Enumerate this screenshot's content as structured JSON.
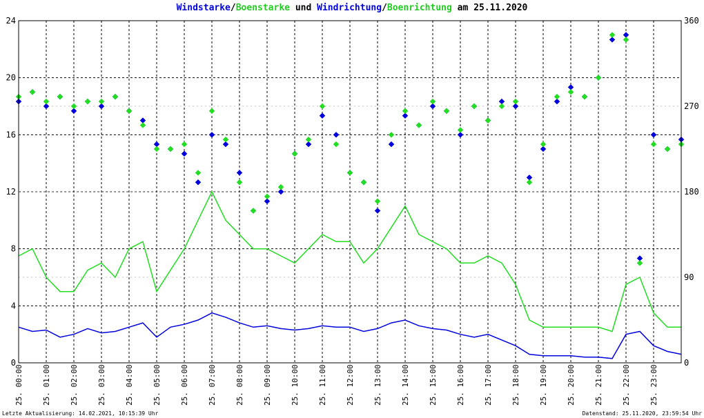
{
  "title": {
    "part1": "Windstarke",
    "sep1": "/",
    "part2": "Boenstarke",
    "part3": " und ",
    "part4": "Windrichtung",
    "sep2": "/",
    "part5": "Boenrichtung",
    "part6": " am 25.11.2020"
  },
  "footer": {
    "left": "Letzte Aktualisierung: 14.02.2021, 10:15:39 Uhr",
    "right": "Datenstand: 25.11.2020, 23:59:54 Uhr"
  },
  "colors": {
    "wind": "#0000dd",
    "gust": "#22dd22",
    "grid": "#000000",
    "axis": "#000000"
  },
  "chart_data": {
    "type": "line",
    "x_unit": "hour of day",
    "xlim": [
      0,
      24
    ],
    "ylim_left": [
      0,
      24
    ],
    "ylim_right": [
      0,
      360
    ],
    "left_ticks": [
      "0",
      "4",
      "8",
      "12",
      "16",
      "20",
      "24"
    ],
    "right_ticks": [
      "0",
      "90",
      "180",
      "270",
      "360"
    ],
    "x_tick_labels": [
      "25. 00:00",
      "25. 01:00",
      "25. 02:00",
      "25. 03:00",
      "25. 04:00",
      "25. 05:00",
      "25. 06:00",
      "25. 07:00",
      "25. 08:00",
      "25. 09:00",
      "25. 10:00",
      "25. 11:00",
      "25. 12:00",
      "25. 13:00",
      "25. 14:00",
      "25. 15:00",
      "25. 16:00",
      "25. 17:00",
      "25. 18:00",
      "25. 19:00",
      "25. 20:00",
      "25. 21:00",
      "25. 22:00",
      "25. 23:00"
    ],
    "grid": true,
    "series": [
      {
        "name": "Windstarke",
        "axis": "left",
        "style": "line",
        "x": [
          0,
          0.5,
          1,
          1.5,
          2,
          2.5,
          3,
          3.5,
          4,
          4.5,
          5,
          5.5,
          6,
          6.5,
          7,
          7.5,
          8,
          8.5,
          9,
          9.5,
          10,
          10.5,
          11,
          11.5,
          12,
          12.5,
          13,
          13.5,
          14,
          14.5,
          15,
          15.5,
          16,
          16.5,
          17,
          17.5,
          18,
          18.5,
          19,
          19.5,
          20,
          20.5,
          21,
          21.5,
          22,
          22.5,
          23,
          23.5,
          24
        ],
        "values": [
          2.5,
          2.2,
          2.3,
          1.8,
          2.0,
          2.4,
          2.1,
          2.2,
          2.5,
          2.8,
          1.8,
          2.5,
          2.7,
          3.0,
          3.5,
          3.2,
          2.8,
          2.5,
          2.6,
          2.4,
          2.3,
          2.4,
          2.6,
          2.5,
          2.5,
          2.2,
          2.4,
          2.8,
          3.0,
          2.6,
          2.4,
          2.3,
          2.0,
          1.8,
          2.0,
          1.6,
          1.2,
          0.6,
          0.5,
          0.5,
          0.5,
          0.4,
          0.4,
          0.3,
          2.0,
          2.2,
          1.2,
          0.8,
          0.6
        ]
      },
      {
        "name": "Boenstarke",
        "axis": "left",
        "style": "line",
        "x": [
          0,
          0.5,
          1,
          1.5,
          2,
          2.5,
          3,
          3.5,
          4,
          4.5,
          5,
          5.5,
          6,
          6.5,
          7,
          7.5,
          8,
          8.5,
          9,
          9.5,
          10,
          10.5,
          11,
          11.5,
          12,
          12.5,
          13,
          13.5,
          14,
          14.5,
          15,
          15.5,
          16,
          16.5,
          17,
          17.5,
          18,
          18.5,
          19,
          19.5,
          20,
          20.5,
          21,
          21.5,
          22,
          22.5,
          23,
          23.5,
          24
        ],
        "values": [
          7.5,
          8.0,
          6.0,
          5.0,
          5.0,
          6.5,
          7.0,
          6.0,
          8.0,
          8.5,
          5.0,
          6.5,
          8.0,
          10.0,
          12.0,
          10.0,
          9.0,
          8.0,
          8.0,
          7.5,
          7.0,
          8.0,
          9.0,
          8.5,
          8.5,
          7.0,
          8.0,
          9.5,
          11.0,
          9.0,
          8.5,
          8.0,
          7.0,
          7.0,
          7.5,
          7.0,
          5.5,
          3.0,
          2.5,
          2.5,
          2.5,
          2.5,
          2.5,
          2.2,
          5.5,
          6.0,
          3.5,
          2.5,
          2.5
        ]
      },
      {
        "name": "Windrichtung",
        "axis": "right",
        "style": "points",
        "x": [
          0,
          0.5,
          1,
          1.5,
          2,
          2.5,
          3,
          3.5,
          4,
          4.5,
          5,
          5.5,
          6,
          6.5,
          7,
          7.5,
          8,
          8.5,
          9,
          9.5,
          10,
          10.5,
          11,
          11.5,
          12,
          12.5,
          13,
          13.5,
          14,
          14.5,
          15,
          15.5,
          16,
          16.5,
          17,
          17.5,
          18,
          18.5,
          19,
          19.5,
          20,
          20.5,
          21,
          21.5,
          22,
          22.5,
          23,
          23.5,
          24
        ],
        "values": [
          275,
          285,
          270,
          280,
          265,
          275,
          270,
          280,
          265,
          255,
          230,
          225,
          220,
          190,
          240,
          230,
          200,
          160,
          170,
          180,
          220,
          230,
          260,
          240,
          200,
          190,
          160,
          230,
          260,
          250,
          270,
          265,
          240,
          270,
          255,
          275,
          270,
          195,
          225,
          275,
          290,
          280,
          300,
          340,
          345,
          110,
          240,
          225,
          235
        ]
      },
      {
        "name": "Boenrichtung",
        "axis": "right",
        "style": "points",
        "x": [
          0,
          0.5,
          1,
          1.5,
          2,
          2.5,
          3,
          3.5,
          4,
          4.5,
          5,
          5.5,
          6,
          6.5,
          7,
          7.5,
          8,
          8.5,
          9,
          9.5,
          10,
          10.5,
          11,
          11.5,
          12,
          12.5,
          13,
          13.5,
          14,
          14.5,
          15,
          15.5,
          16,
          16.5,
          17,
          17.5,
          18,
          18.5,
          19,
          19.5,
          20,
          20.5,
          21,
          21.5,
          22,
          22.5,
          23,
          23.5,
          24
        ],
        "values": [
          280,
          285,
          275,
          280,
          270,
          275,
          275,
          280,
          265,
          250,
          225,
          225,
          230,
          200,
          265,
          235,
          190,
          160,
          175,
          185,
          220,
          235,
          270,
          230,
          200,
          190,
          170,
          240,
          265,
          250,
          275,
          265,
          245,
          270,
          255,
          270,
          275,
          190,
          230,
          280,
          285,
          280,
          300,
          345,
          340,
          105,
          230,
          225,
          230
        ]
      }
    ]
  }
}
